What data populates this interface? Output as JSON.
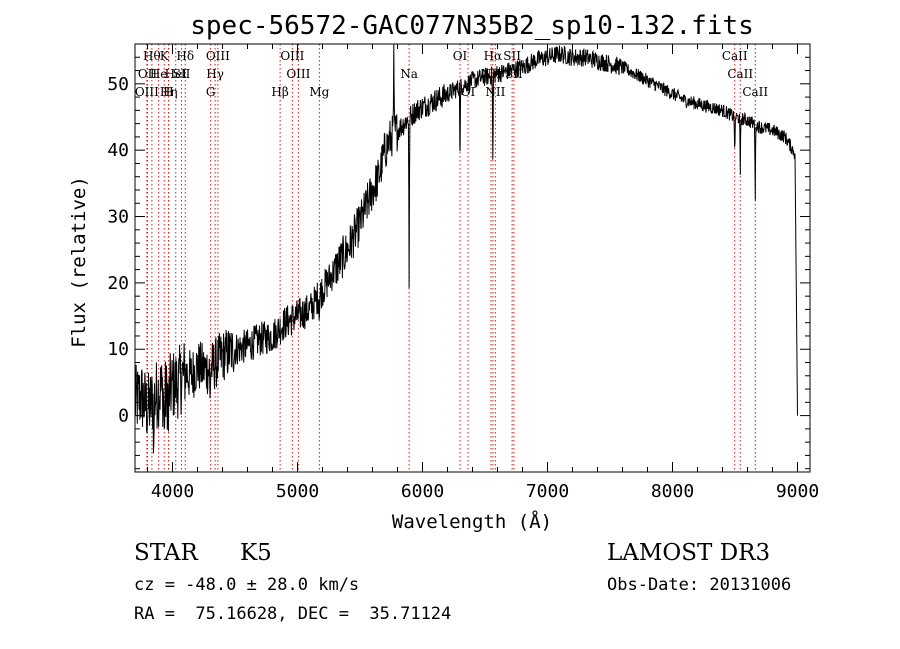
{
  "chart_data": {
    "type": "line",
    "title": "spec-56572-GAC077N35B2_sp10-132.fits",
    "xlabel": "Wavelength (Å)",
    "ylabel": "Flux (relative)",
    "xlim": [
      3700,
      9100
    ],
    "ylim": [
      -8.5,
      56
    ],
    "xticks": [
      4000,
      5000,
      6000,
      7000,
      8000,
      9000
    ],
    "yticks": [
      0,
      10,
      20,
      30,
      40,
      50
    ],
    "xminor_step": 200,
    "yminor_step": 2,
    "grid": false,
    "series": [
      {
        "name": "spectrum",
        "x": [
          3700,
          3750,
          3800,
          3850,
          3900,
          3950,
          4000,
          4050,
          4100,
          4150,
          4200,
          4250,
          4300,
          4350,
          4400,
          4450,
          4500,
          4600,
          4700,
          4800,
          4900,
          5000,
          5100,
          5200,
          5300,
          5400,
          5500,
          5600,
          5650,
          5700,
          5750,
          5800,
          5850,
          5900,
          5950,
          6000,
          6100,
          6200,
          6300,
          6400,
          6500,
          6600,
          6700,
          6800,
          6900,
          7000,
          7100,
          7200,
          7300,
          7400,
          7500,
          7600,
          7700,
          7800,
          7900,
          8000,
          8100,
          8200,
          8300,
          8400,
          8500,
          8600,
          8700,
          8800,
          8900,
          8980
        ],
        "y": [
          2,
          3,
          1,
          2.5,
          4,
          3,
          4.5,
          5,
          6.5,
          6,
          7.5,
          7,
          7,
          8,
          9,
          9.5,
          10,
          10.5,
          11.5,
          12,
          14,
          15,
          16,
          19,
          22,
          25,
          29,
          34,
          36,
          40,
          42,
          43,
          44,
          45,
          46,
          46.5,
          47.5,
          48.5,
          49.5,
          50.5,
          51,
          51.5,
          52,
          52.5,
          53.5,
          54,
          54.5,
          54,
          54,
          53.5,
          53,
          52.5,
          51.5,
          50.5,
          49.5,
          48.5,
          47.5,
          47,
          46.5,
          46,
          45,
          44.5,
          43.5,
          43,
          42,
          39.5
        ]
      }
    ],
    "absorption_features": [
      {
        "x": 3850,
        "depth": 9
      },
      {
        "x": 3934,
        "depth": 7
      },
      {
        "x": 3968,
        "depth": 6
      },
      {
        "x": 4300,
        "depth": 5
      },
      {
        "x": 5175,
        "depth": 3
      },
      {
        "x": 5893,
        "depth": 26
      },
      {
        "x": 6300,
        "depth": 13
      },
      {
        "x": 6563,
        "depth": 16
      },
      {
        "x": 8498,
        "depth": 7
      },
      {
        "x": 8542,
        "depth": 9
      },
      {
        "x": 8662,
        "depth": 11
      },
      {
        "x": 8990,
        "depth": 40
      }
    ],
    "emission_features": [
      {
        "x": 5770,
        "height": 12
      }
    ],
    "spectral_lines": [
      {
        "x": 3835,
        "label": "Hθ",
        "row": 0
      },
      {
        "x": 3800,
        "label": "OII",
        "row": 1
      },
      {
        "x": 3795,
        "label": "OIII",
        "row": 2
      },
      {
        "x": 3889,
        "label": "He",
        "row": 1
      },
      {
        "x": 3934,
        "label": "K",
        "row": 0
      },
      {
        "x": 3970,
        "label": "Hη",
        "row": 2
      },
      {
        "x": 3968,
        "label": "H",
        "row": 2
      },
      {
        "x": 4026,
        "label": "HeI",
        "row": 1
      },
      {
        "x": 4102,
        "label": "Hδ",
        "row": 0
      },
      {
        "x": 4072,
        "label": "SII",
        "row": 1
      },
      {
        "x": 4341,
        "label": "Hγ",
        "row": 1
      },
      {
        "x": 4363,
        "label": "OIII",
        "row": 0
      },
      {
        "x": 4305,
        "label": "G",
        "row": 2
      },
      {
        "x": 4861,
        "label": "Hβ",
        "row": 2
      },
      {
        "x": 4959,
        "label": "OIII",
        "row": 0
      },
      {
        "x": 5007,
        "label": "OIII",
        "row": 1
      },
      {
        "x": 5175,
        "label": "Mg",
        "row": 2
      },
      {
        "x": 5893,
        "label": "Na",
        "row": 1
      },
      {
        "x": 6300,
        "label": "OI",
        "row": 0
      },
      {
        "x": 6364,
        "label": "OI",
        "row": 2
      },
      {
        "x": 6563,
        "label": "Hα",
        "row": 0
      },
      {
        "x": 6548,
        "label": "NII",
        "row": 1
      },
      {
        "x": 6583,
        "label": "NII",
        "row": 2
      },
      {
        "x": 6717,
        "label": "SII",
        "row": 0
      },
      {
        "x": 6731,
        "label": "SII",
        "row": 1
      },
      {
        "x": 8498,
        "label": "CaII",
        "row": 0
      },
      {
        "x": 8542,
        "label": "CaII",
        "row": 1
      },
      {
        "x": 8662,
        "label": "CaII",
        "row": 2
      }
    ]
  },
  "info": {
    "class": "STAR",
    "subclass": "K5",
    "survey": "LAMOST DR3",
    "cz": "cz = -48.0 ± 28.0 km/s",
    "obs_date": "Obs-Date: 20131006",
    "coords": "RA =  75.16628, DEC =  35.71124"
  }
}
